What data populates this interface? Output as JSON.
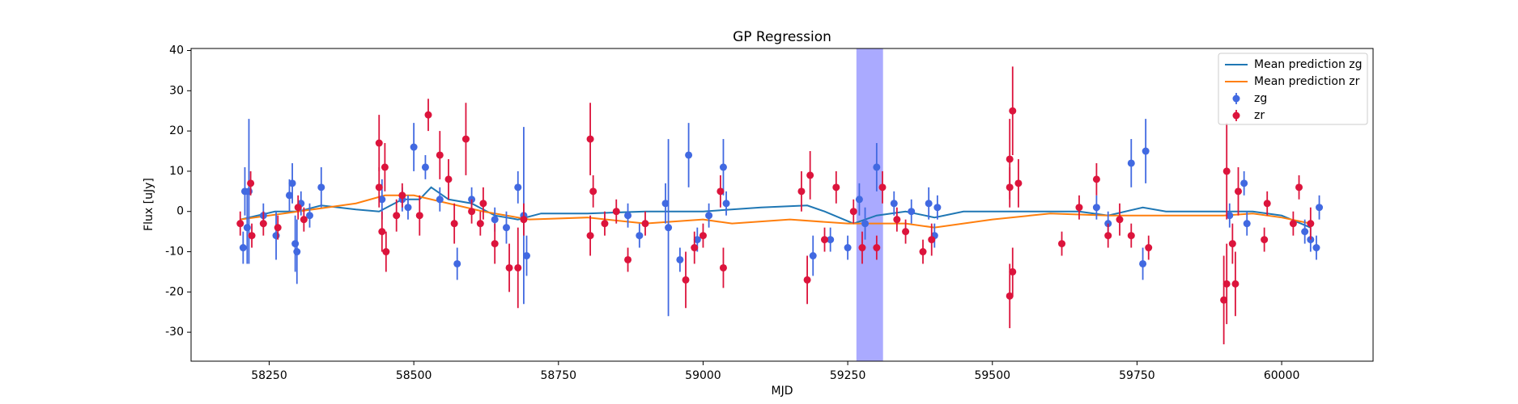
{
  "chart_data": {
    "type": "line",
    "title": "GP Regression",
    "xlabel": "MJD",
    "ylabel": "Flux [uJy]",
    "xlim": [
      58115,
      60158
    ],
    "ylim": [
      -37.2,
      40.5
    ],
    "xticks": [
      58250,
      58500,
      58750,
      59000,
      59250,
      59500,
      59750,
      60000
    ],
    "yticks": [
      -30,
      -20,
      -10,
      0,
      10,
      20,
      30,
      40
    ],
    "legend": "upper right",
    "highlight_span": [
      59265,
      59311
    ],
    "highlight_color": "#aaaaff",
    "series": [
      {
        "name": "Mean prediction zg",
        "style": "line",
        "color": "#1f77b4",
        "x": [
          58200,
          58260,
          58300,
          58340,
          58400,
          58440,
          58480,
          58510,
          58530,
          58560,
          58600,
          58640,
          58680,
          58720,
          58800,
          58900,
          59000,
          59100,
          59180,
          59210,
          59260,
          59300,
          59350,
          59400,
          59450,
          59600,
          59650,
          59700,
          59760,
          59800,
          59950,
          60000,
          60050
        ],
        "values": [
          -2,
          0,
          0,
          1.5,
          0.5,
          0,
          3,
          3,
          6,
          3,
          2,
          -1,
          -2,
          -0.5,
          -0.5,
          0,
          0,
          1,
          1.5,
          0,
          -3,
          -1,
          0,
          -1.5,
          0,
          0,
          0,
          -1,
          1,
          0,
          0,
          -1,
          -4
        ]
      },
      {
        "name": "Mean prediction zr",
        "style": "line",
        "color": "#ff7f0e",
        "x": [
          58200,
          58300,
          58400,
          58450,
          58500,
          58560,
          58620,
          58700,
          58800,
          58900,
          59000,
          59050,
          59150,
          59250,
          59300,
          59350,
          59400,
          59500,
          59600,
          59700,
          59800,
          59900,
          59950,
          60000,
          60050
        ],
        "values": [
          -2,
          0,
          2,
          4,
          4,
          2,
          0,
          -2,
          -1.5,
          -3,
          -2,
          -3,
          -2,
          -3,
          -3,
          -3,
          -4,
          -2,
          -0.5,
          -1,
          -1,
          -1,
          -0.5,
          -1.5,
          -3
        ]
      },
      {
        "name": "zg",
        "style": "errorbar",
        "color": "#4169e1",
        "x": [
          58205,
          58208,
          58212,
          58215,
          58240,
          58262,
          58285,
          58290,
          58295,
          58298,
          58305,
          58320,
          58340,
          58445,
          58480,
          58490,
          58500,
          58520,
          58545,
          58575,
          58600,
          58640,
          58660,
          58680,
          58690,
          58695,
          58870,
          58890,
          58935,
          58940,
          58960,
          58975,
          58990,
          59010,
          59035,
          59040,
          59190,
          59220,
          59250,
          59270,
          59280,
          59300,
          59330,
          59360,
          59390,
          59400,
          59405,
          59680,
          59700,
          59740,
          59760,
          59765,
          59910,
          59935,
          59940,
          60040,
          60050,
          60060,
          60065
        ],
        "values": [
          -9,
          5,
          -4,
          5,
          -1,
          -6,
          4,
          7,
          -8,
          -10,
          2,
          -1,
          6,
          3,
          3,
          1,
          16,
          11,
          3,
          -13,
          3,
          -2,
          -4,
          6,
          -1,
          -11,
          -1,
          -6,
          2,
          -4,
          -12,
          14,
          -7,
          -1,
          11,
          2,
          -11,
          -7,
          -9,
          3,
          -3,
          11,
          2,
          0,
          2,
          -6,
          1,
          1,
          -3,
          12,
          -13,
          15,
          -1,
          7,
          -3,
          -5,
          -7,
          -9,
          1
        ],
        "errors": [
          4,
          6,
          9,
          18,
          3,
          6,
          4,
          5,
          7,
          8,
          3,
          3,
          5,
          5,
          3,
          3,
          6,
          3,
          3,
          4,
          3,
          3,
          4,
          4,
          22,
          5,
          3,
          3,
          5,
          22,
          3,
          8,
          3,
          3,
          7,
          3,
          5,
          3,
          3,
          4,
          4,
          6,
          3,
          3,
          4,
          3,
          3,
          3,
          3,
          6,
          4,
          8,
          3,
          3,
          3,
          3,
          3,
          3,
          3
        ]
      },
      {
        "name": "zr",
        "style": "errorbar",
        "color": "#dc143c",
        "x": [
          58200,
          58218,
          58220,
          58240,
          58265,
          58300,
          58310,
          58440,
          58440,
          58445,
          58450,
          58452,
          58470,
          58480,
          58510,
          58525,
          58545,
          58560,
          58570,
          58590,
          58600,
          58615,
          58620,
          58640,
          58665,
          58680,
          58690,
          58805,
          58805,
          58810,
          58830,
          58850,
          58870,
          58900,
          58970,
          58985,
          59000,
          59030,
          59035,
          59170,
          59180,
          59185,
          59210,
          59230,
          59260,
          59275,
          59300,
          59310,
          59335,
          59350,
          59380,
          59395,
          59530,
          59530,
          59535,
          59535,
          59530,
          59545,
          59620,
          59650,
          59680,
          59700,
          59720,
          59740,
          59770,
          59900,
          59905,
          59905,
          59915,
          59920,
          59925,
          59970,
          59975,
          60020,
          60030,
          60050
        ],
        "values": [
          -3,
          7,
          -6,
          -3,
          -4,
          1,
          -2,
          17,
          6,
          -5,
          11,
          -10,
          -1,
          4,
          -1,
          24,
          14,
          8,
          -3,
          18,
          0,
          -3,
          2,
          -8,
          -14,
          -14,
          -2,
          18,
          -6,
          5,
          -3,
          0,
          -12,
          -3,
          -17,
          -9,
          -6,
          5,
          -14,
          5,
          -17,
          9,
          -7,
          6,
          0,
          -9,
          -9,
          6,
          -2,
          -5,
          -10,
          -7,
          -21,
          13,
          25,
          -15,
          6,
          7,
          -8,
          1,
          8,
          -6,
          -2,
          -6,
          -9,
          -22,
          -18,
          10,
          -8,
          -18,
          5,
          -7,
          2,
          -3,
          6,
          -3
        ],
        "errors": [
          3,
          3,
          3,
          3,
          3,
          3,
          3,
          7,
          5,
          5,
          6,
          5,
          4,
          3,
          5,
          4,
          6,
          5,
          5,
          9,
          3,
          3,
          4,
          5,
          6,
          10,
          4,
          9,
          5,
          4,
          3,
          3,
          3,
          3,
          7,
          4,
          3,
          4,
          5,
          5,
          6,
          6,
          3,
          4,
          3,
          4,
          3,
          4,
          3,
          3,
          3,
          4,
          8,
          10,
          11,
          6,
          5,
          6,
          3,
          3,
          4,
          3,
          4,
          3,
          3,
          11,
          10,
          12,
          5,
          8,
          6,
          3,
          3,
          3,
          3,
          4
        ]
      }
    ]
  }
}
